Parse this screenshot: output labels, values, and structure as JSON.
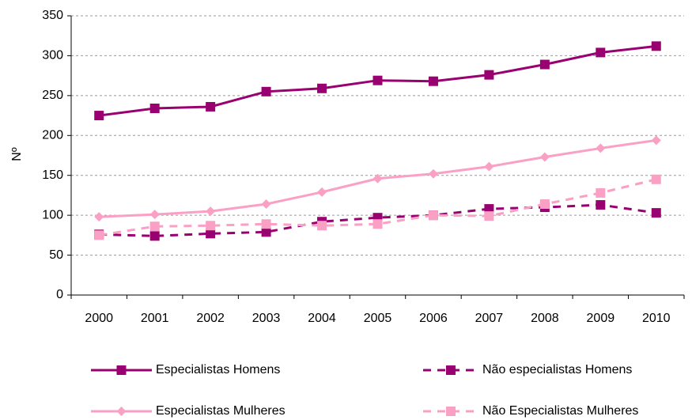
{
  "chart_data": {
    "type": "line",
    "y_label": "Nº",
    "categories": [
      "2000",
      "2001",
      "2002",
      "2003",
      "2004",
      "2005",
      "2006",
      "2007",
      "2008",
      "2009",
      "2010"
    ],
    "series": [
      {
        "name": "Especialistas Homens",
        "color": "#990070",
        "marker": "square",
        "dashed": false,
        "values": [
          225,
          234,
          236,
          255,
          259,
          269,
          268,
          276,
          289,
          304,
          312
        ]
      },
      {
        "name": "Não especialistas Homens",
        "color": "#990070",
        "marker": "square",
        "dashed": true,
        "values": [
          76,
          74,
          77,
          79,
          92,
          97,
          100,
          108,
          110,
          113,
          103
        ]
      },
      {
        "name": "Especialistas Mulheres",
        "color": "#f9a0c4",
        "marker": "diamond",
        "dashed": false,
        "values": [
          98,
          101,
          105,
          114,
          129,
          146,
          152,
          161,
          173,
          184,
          194
        ]
      },
      {
        "name": "Não Especialistas Mulheres",
        "color": "#f9a0c4",
        "marker": "square",
        "dashed": true,
        "values": [
          75,
          86,
          87,
          89,
          87,
          89,
          100,
          99,
          114,
          128,
          145
        ]
      }
    ],
    "ylim": [
      0,
      350
    ],
    "yticks": [
      0,
      50,
      100,
      150,
      200,
      250,
      300,
      350
    ],
    "grid": true
  }
}
